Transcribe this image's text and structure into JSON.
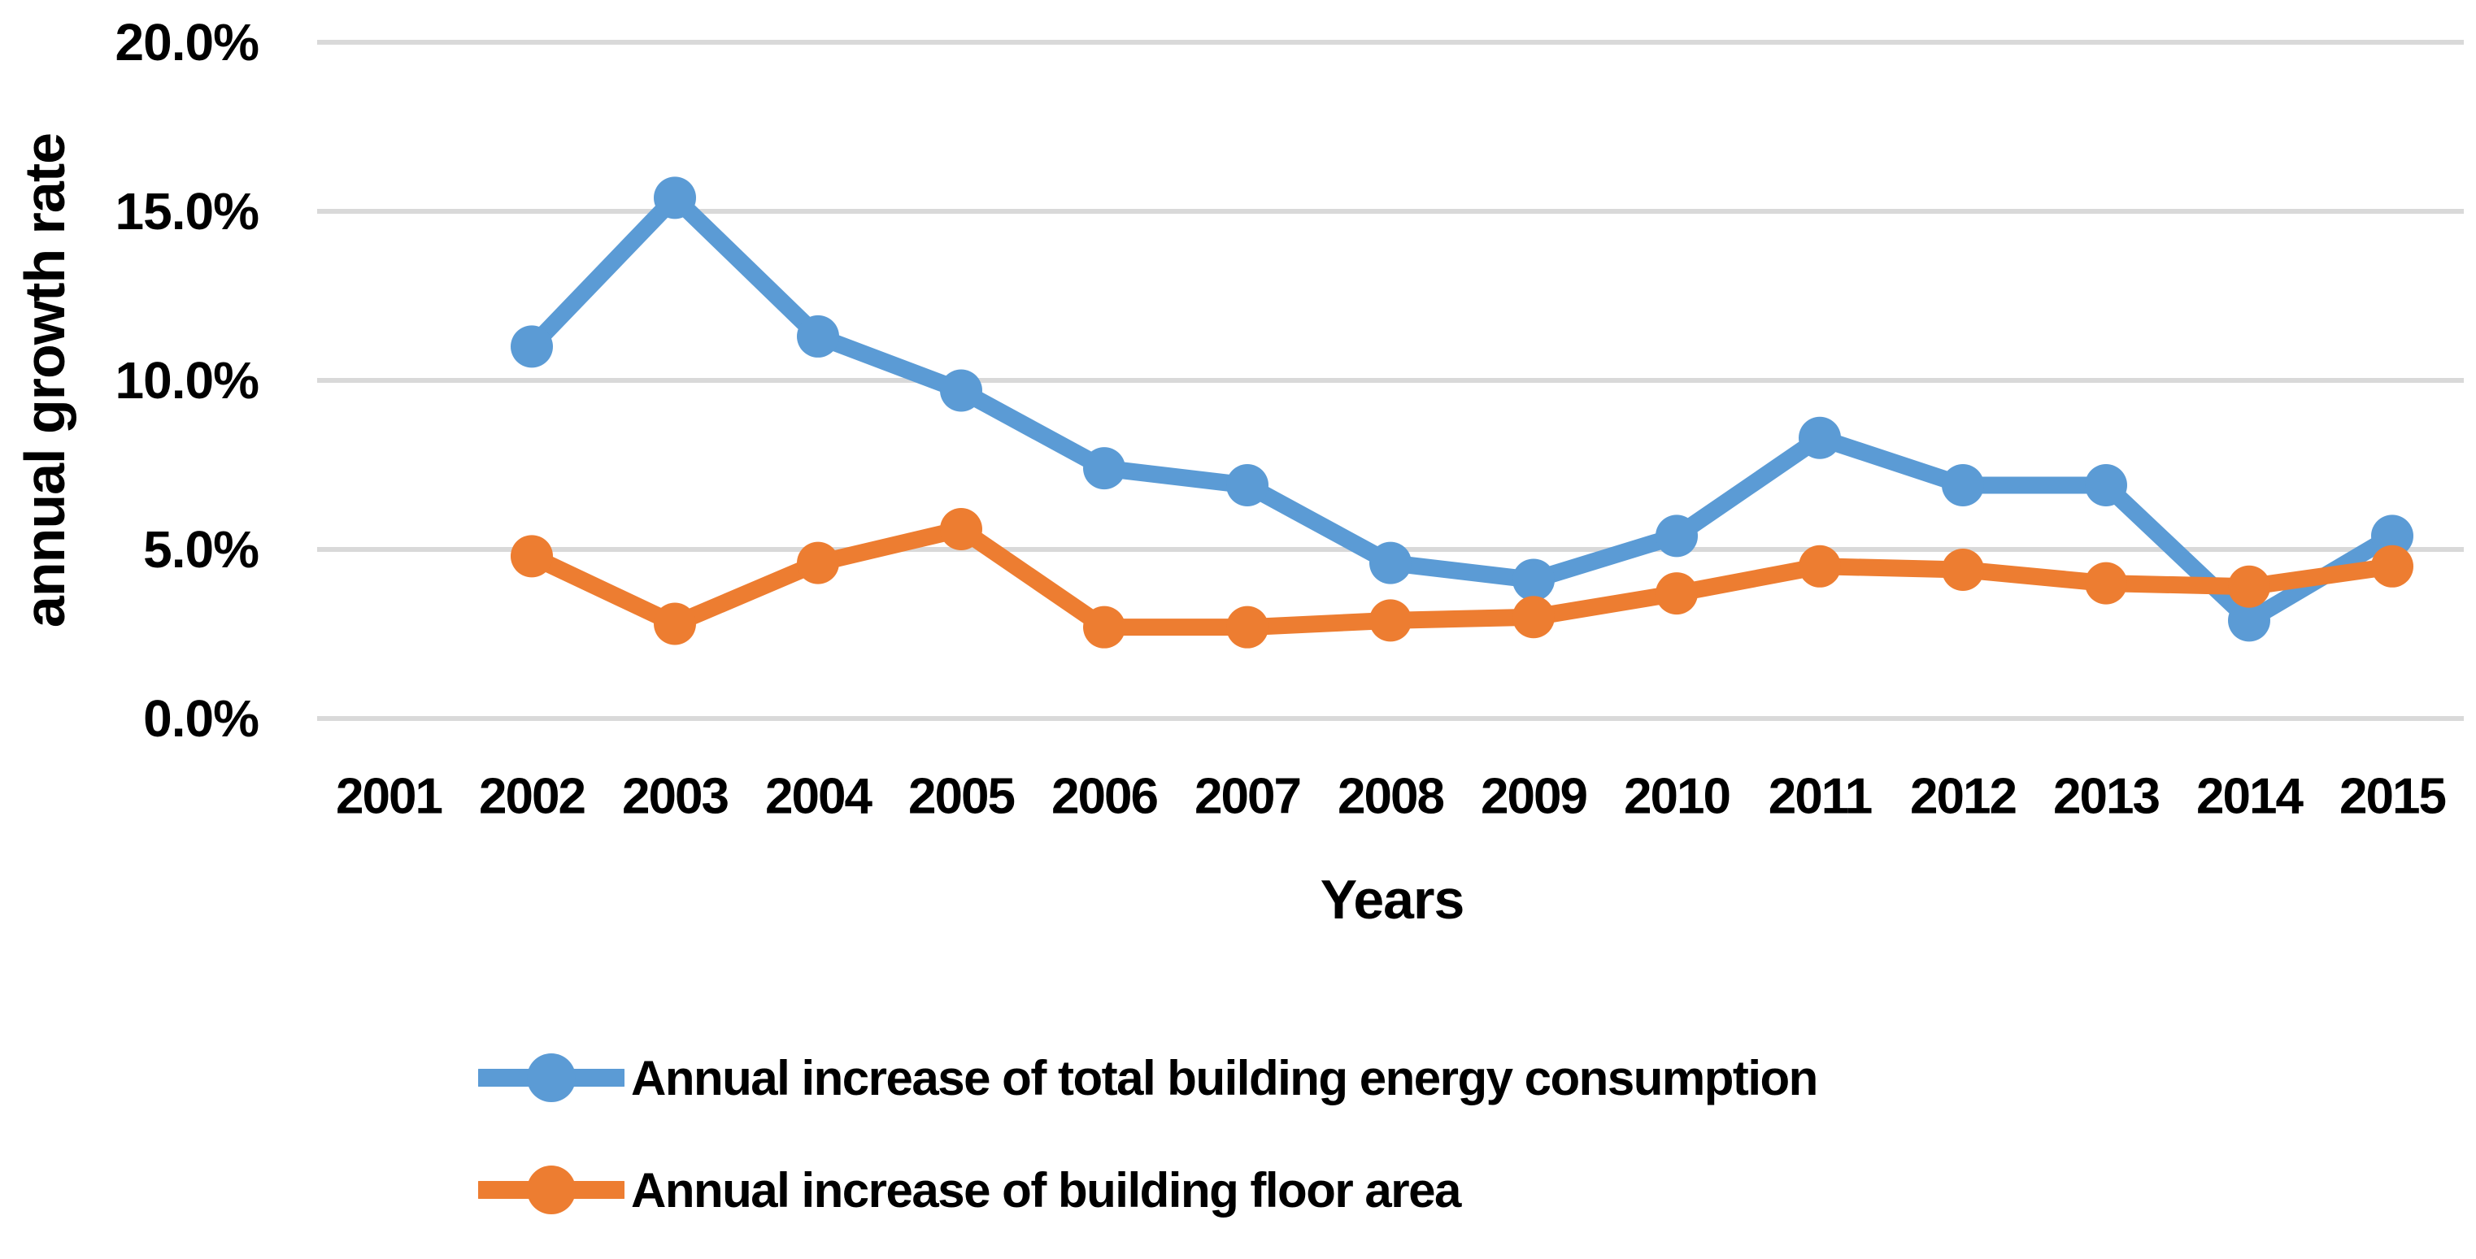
{
  "chart_data": {
    "type": "line",
    "title": "",
    "xlabel": "Years",
    "ylabel": "annual growth rate",
    "categories": [
      "2001",
      "2002",
      "2003",
      "2004",
      "2005",
      "2006",
      "2007",
      "2008",
      "2009",
      "2010",
      "2011",
      "2012",
      "2013",
      "2014",
      "2015"
    ],
    "y_axis": {
      "min": 0,
      "max": 20,
      "ticks": [
        {
          "value": 0,
          "label": "0.0%"
        },
        {
          "value": 5,
          "label": "5.0%"
        },
        {
          "value": 10,
          "label": "10.0%"
        },
        {
          "value": 15,
          "label": "15.0%"
        },
        {
          "value": 20,
          "label": "20.0%"
        }
      ]
    },
    "grid": true,
    "legend_position": "bottom-left",
    "series": [
      {
        "name": "Annual increase of total building energy consumption",
        "color": "#5B9BD5",
        "marker": "circle",
        "values": [
          null,
          11.0,
          15.4,
          11.3,
          9.7,
          7.4,
          6.9,
          4.6,
          4.1,
          5.4,
          8.3,
          6.9,
          6.9,
          2.9,
          5.4
        ]
      },
      {
        "name": "Annual increase of building floor area",
        "color": "#ED7D31",
        "marker": "circle",
        "values": [
          null,
          4.8,
          2.8,
          4.6,
          5.6,
          2.7,
          2.7,
          2.9,
          3.0,
          3.7,
          4.5,
          4.4,
          4.0,
          3.9,
          4.5
        ]
      }
    ],
    "styles": {
      "gridline_color": "#D9D9D9",
      "text_color": "#000000",
      "background": "#FFFFFF"
    }
  }
}
